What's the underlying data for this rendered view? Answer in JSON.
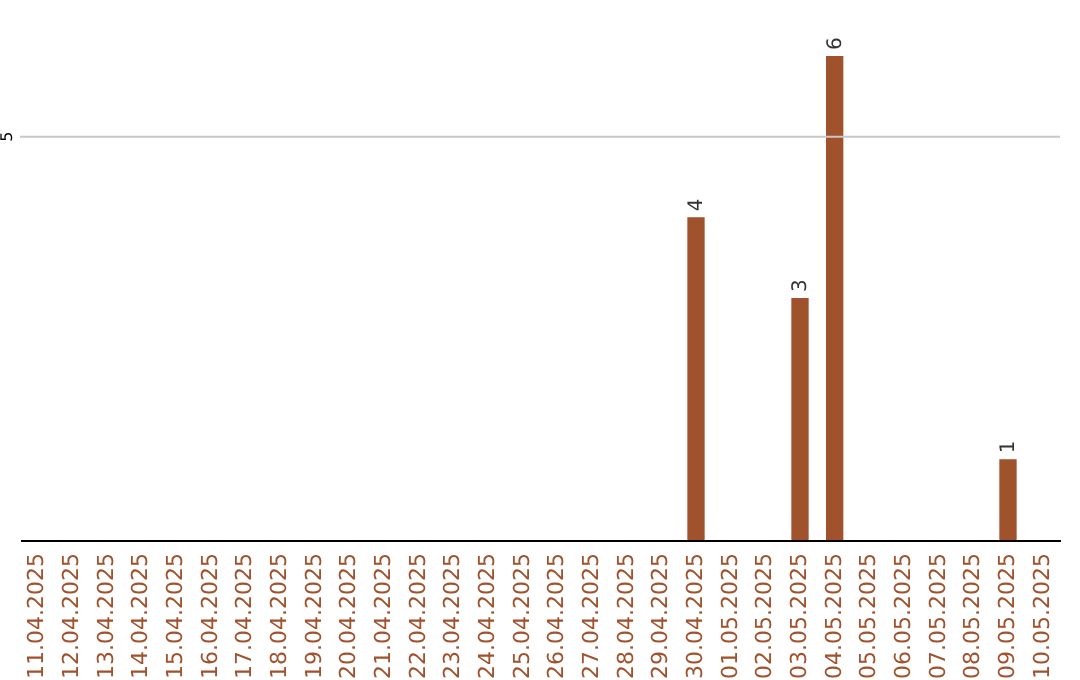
{
  "chart_data": {
    "type": "bar",
    "categories": [
      "11.04.2025",
      "12.04.2025",
      "13.04.2025",
      "14.04.2025",
      "15.04.2025",
      "16.04.2025",
      "17.04.2025",
      "18.04.2025",
      "19.04.2025",
      "20.04.2025",
      "21.04.2025",
      "22.04.2025",
      "23.04.2025",
      "24.04.2025",
      "25.04.2025",
      "26.04.2025",
      "27.04.2025",
      "28.04.2025",
      "29.04.2025",
      "30.04.2025",
      "01.05.2025",
      "02.05.2025",
      "03.05.2025",
      "04.05.2025",
      "05.05.2025",
      "06.05.2025",
      "07.05.2025",
      "08.05.2025",
      "09.05.2025",
      "10.05.2025"
    ],
    "values": [
      null,
      null,
      null,
      null,
      null,
      null,
      null,
      null,
      null,
      null,
      null,
      null,
      null,
      null,
      null,
      null,
      null,
      null,
      null,
      4,
      null,
      null,
      3,
      6,
      null,
      null,
      null,
      null,
      1,
      null
    ],
    "value_labels": [
      null,
      null,
      null,
      null,
      null,
      null,
      null,
      null,
      null,
      null,
      null,
      null,
      null,
      null,
      null,
      null,
      null,
      null,
      null,
      "4",
      null,
      null,
      "3",
      "6",
      null,
      null,
      null,
      null,
      "1",
      null
    ],
    "ref_lines": [
      {
        "axis": "y",
        "value": 5,
        "label": "5",
        "color": "#c8c8c8"
      }
    ],
    "color": "#a0522d"
  }
}
